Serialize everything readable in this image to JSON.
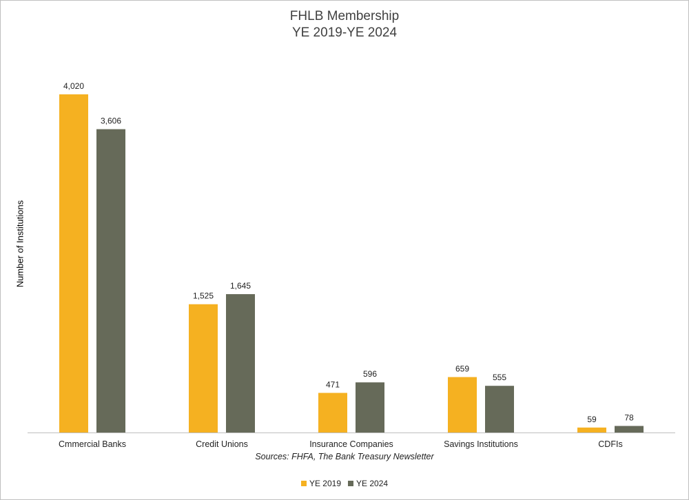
{
  "chart_data": {
    "type": "bar",
    "title": "FHLB Membership",
    "subtitle": "YE 2019-YE 2024",
    "ylabel": "Number of Institutions",
    "xlabel": "",
    "source": "Sources: FHFA, The Bank Treasury Newsletter",
    "categories": [
      "Cmmercial Banks",
      "Credit Unions",
      "Insurance Companies",
      "Savings Institutions",
      "CDFIs"
    ],
    "series": [
      {
        "name": "YE 2019",
        "values": [
          4020,
          1525,
          471,
          659,
          59
        ],
        "labels": [
          "4,020",
          "1,525",
          "471",
          "659",
          "59"
        ],
        "color": "#F5B121"
      },
      {
        "name": "YE 2024",
        "values": [
          3606,
          1645,
          596,
          555,
          78
        ],
        "labels": [
          "3,606",
          "1,645",
          "596",
          "555",
          "78"
        ],
        "color": "#666A59"
      }
    ],
    "ylim": [
      0,
      4500
    ],
    "grid": false,
    "legend_position": "bottom"
  }
}
